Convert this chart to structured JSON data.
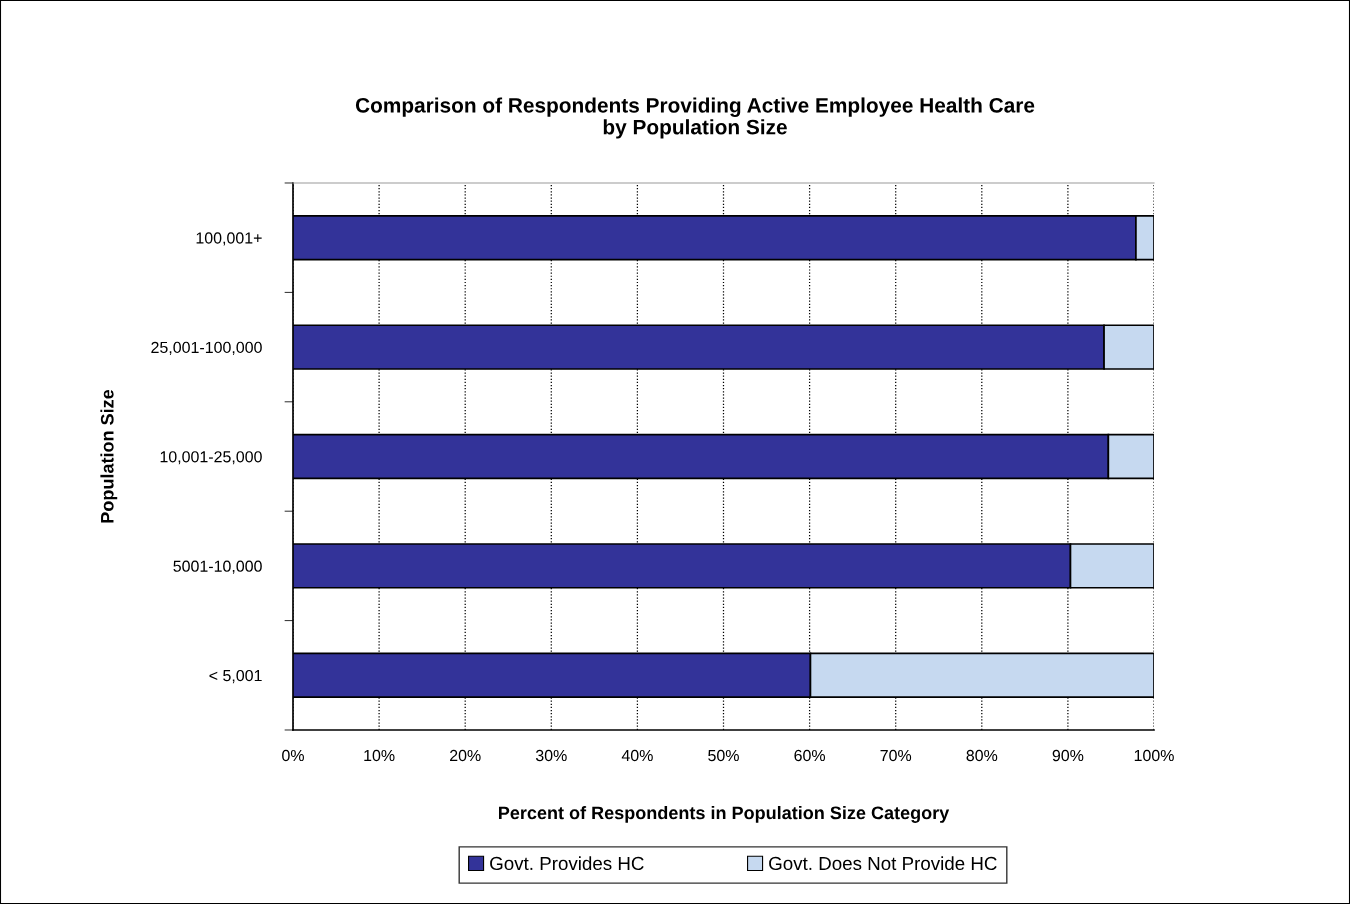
{
  "chart_data": {
    "type": "bar",
    "orientation": "horizontal",
    "stacked": true,
    "title": "Comparison of Respondents Providing Active Employee Health Care\nby Population Size",
    "xlabel": "Percent of Respondents in Population Size Category",
    "ylabel": "Population Size",
    "categories": [
      "100,001+",
      "25,001-100,000",
      "10,001-25,000",
      "5001-10,000",
      "< 5,001"
    ],
    "series": [
      {
        "name": "Govt. Provides HC",
        "color": "#333399",
        "values": [
          97.9,
          94.2,
          94.7,
          90.3,
          60.1
        ]
      },
      {
        "name": "Govt. Does Not Provide HC",
        "color": "#c6d9f0",
        "values": [
          2.1,
          5.8,
          5.3,
          9.7,
          39.9
        ]
      }
    ],
    "xlim": [
      0,
      100
    ],
    "xticks": [
      {
        "value": 0,
        "label": "0%"
      },
      {
        "value": 10,
        "label": "10%"
      },
      {
        "value": 20,
        "label": "20%"
      },
      {
        "value": 30,
        "label": "30%"
      },
      {
        "value": 40,
        "label": "40%"
      },
      {
        "value": 50,
        "label": "50%"
      },
      {
        "value": 60,
        "label": "60%"
      },
      {
        "value": 70,
        "label": "70%"
      },
      {
        "value": 80,
        "label": "80%"
      },
      {
        "value": 90,
        "label": "90%"
      },
      {
        "value": 100,
        "label": "100%"
      }
    ],
    "grid": "x",
    "legend": "bottom"
  }
}
